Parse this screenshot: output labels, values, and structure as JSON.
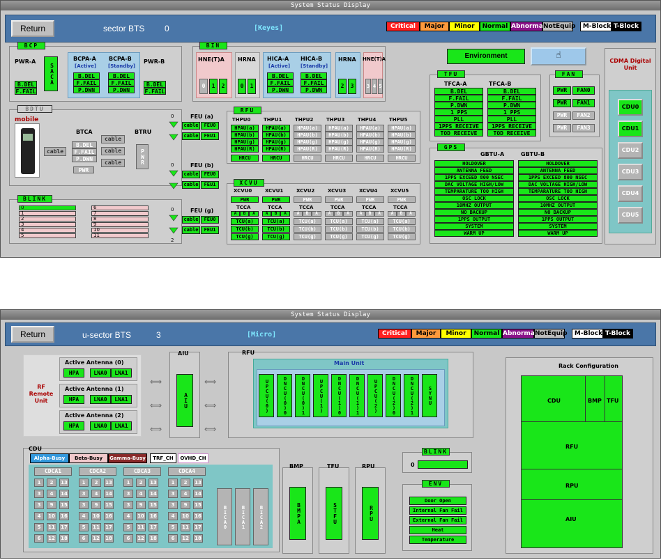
{
  "top": {
    "title": "System Status Display",
    "return_label": "Return",
    "bts": "sector BTS",
    "bts_num": "0",
    "mode": "[Keyes]",
    "bcp": "BCP",
    "bdtu": "BDTU",
    "blink": "BLINK",
    "bin": "BIN",
    "rfu": "RFU",
    "xcvu": "XCVU",
    "tfu": "TFU",
    "fan": "FAN",
    "gps": "GPS",
    "pwr_a": "PWR-A",
    "pwr_b": "PWR-B",
    "saca": "SACA",
    "bcpa_a": "BCPA-A",
    "bcpa_b": "BCPA-B",
    "active": "[Active]",
    "standby": "[Standby]",
    "bdel": "B.DEL",
    "ffail": "F.FAIL",
    "pdwn": "P.DWN",
    "mobile": "mobile",
    "btca": "BTCA",
    "btru": "BTRU",
    "cable": "cable",
    "pwr": "PWR",
    "pwr_v": "PWR",
    "hne_t_a1": "HNE(T)A",
    "hrna": "HRNA",
    "hica_a": "HICA-A",
    "hica_b": "HICA-B",
    "hne_t_a2": "HNE(T)A",
    "feu_a": "FEU (a)",
    "feu_b": "FEU (b)",
    "feu_g": "FEU (g)",
    "feu0": "FEU0",
    "feu1": "FEU1",
    "thpu": [
      "THPU0",
      "THPU1",
      "THPU2",
      "THPU3",
      "THPU4",
      "THPU5"
    ],
    "hpau": [
      "HPAU(a)",
      "HPAU(b)",
      "HPAU(g)",
      "HPAU(R)"
    ],
    "hrcu": "HRCU",
    "xcvu_units": [
      "XCVU0",
      "XCVU1",
      "XCVU2",
      "XCVU3",
      "XCVU4",
      "XCVU5"
    ],
    "tcca": "TCCA",
    "tcu": [
      "TCU(a)",
      "TCU(b)",
      "TCU(g)"
    ],
    "environment": "Environment",
    "tfca_a": "TFCA-A",
    "tfca_b": "TFCA-B",
    "tfu_items": [
      "B.DEL",
      "F.FAIL",
      "P.DWN",
      "1 PPS",
      "PLL",
      "1PPS RECEIVE",
      "TOD RECEIVE"
    ],
    "fan_items": [
      "FAN0",
      "FAN1",
      "FAN2",
      "FAN3"
    ],
    "gbtu_a": "GBTU-A",
    "gbtu_b": "GBTU-B",
    "gps_items": [
      "HOLDOVER",
      "ANTENNA FEED",
      "1PPS EXCEED 800 NSEC",
      "DAC VOLTAGE HIGH/LOW",
      "TEMPARATURE TOO HIGH",
      "OSC LOCK",
      "10MHZ OUTPUT",
      "NO BACKUP",
      "1PPS OUTPUT",
      "SYSTEM",
      "WARM UP"
    ],
    "cdma_unit": "CDMA Digital Unit",
    "cdu_list": [
      "CDU0",
      "CDU1",
      "CDU2",
      "CDU3",
      "CDU4",
      "CDU5"
    ],
    "blink_left": [
      "0",
      "1",
      "2",
      "3",
      "4",
      "5"
    ],
    "blink_right": [
      "6",
      "7",
      "8",
      "9",
      "10",
      "11"
    ]
  },
  "legend": [
    "Critical",
    "Major",
    "Minor",
    "Normal",
    "Abnormal",
    "NotEquip",
    "M-Block",
    "T-Block"
  ],
  "legend_colors": [
    "#ff2020",
    "#ff9a3c",
    "#ffff00",
    "#19e619",
    "#8a138a",
    "#bdbdbd",
    "#ffffff",
    "#000000"
  ],
  "bottom": {
    "title": "System Status Display",
    "return_label": "Return",
    "bts": "u-sector BTS",
    "bts_num": "3",
    "mode": "[Micro]",
    "rf_remote": "RF Remote Unit",
    "antennas": [
      "Active Antenna (0)",
      "Active Antenna (1)",
      "Active Antenna (2)"
    ],
    "hpa": "HPA",
    "lna0": "LNA0",
    "lna1": "LNA1",
    "aiu": "AIU",
    "aiu_v": "AIU",
    "rfu": "RFU",
    "main_unit": "Main Unit",
    "rfu_mods": [
      "UPCU(0)",
      "DNCU(0)0",
      "DNCU(0)1",
      "UPCU(1)",
      "DNCU(1)0",
      "DNCU(1)1",
      "UPCU(2)",
      "DNCU(2)0",
      "DNCU(2)1",
      "SYNU"
    ],
    "rack": "Rack Configuration",
    "rack_cdu": "CDU",
    "rack_bmp": "BMP",
    "rack_tfu": "TFU",
    "rack_rfu": "RFU",
    "rack_rpu": "RPU",
    "rack_aiu": "AIU",
    "cdu": "CDU",
    "alpha": "Alpha-Busy",
    "beta": "Beta-Busy",
    "gamma": "Gamma-Busy",
    "trf": "TRF_CH",
    "ovhd": "OVHD_CH",
    "cdca": [
      "CDCA1",
      "CDCA2",
      "CDCA3",
      "CDCA4"
    ],
    "bica": [
      "BICA0",
      "BICA1",
      "BICA2"
    ],
    "bmp": "BMP",
    "tfu": "TFU",
    "rpu": "RPU",
    "bmpa": "BMPA",
    "stfu": "STFU",
    "rpu_v": "RPU",
    "blink": "BLINK",
    "blink_zero": "0",
    "env": "ENV",
    "env_items": [
      "Door Open",
      "Internal Fan Fail",
      "External Fan Fail",
      "Heat",
      "Temperature"
    ]
  }
}
